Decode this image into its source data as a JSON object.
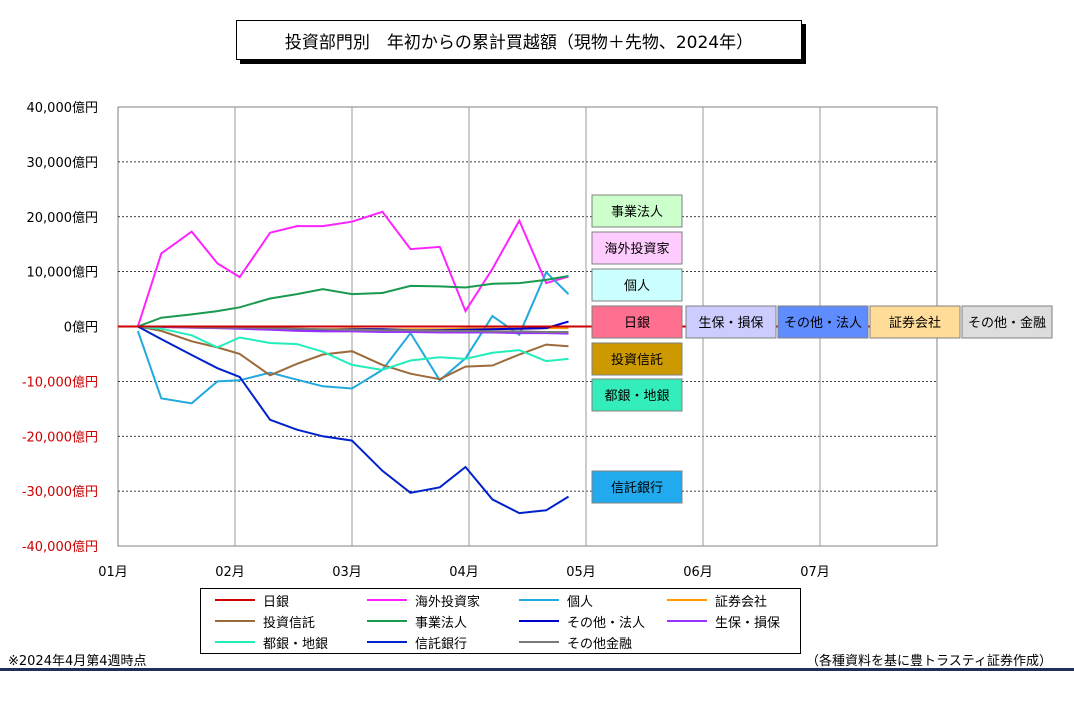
{
  "chart_data": {
    "type": "line",
    "title": "投資部門別　年初からの累計買越額（現物＋先物、2024年）",
    "x_ticks": [
      "01月",
      "02月",
      "03月",
      "04月",
      "05月",
      "06月",
      "07月"
    ],
    "y_ticks": [
      {
        "value": 40000,
        "label": "40,000億円"
      },
      {
        "value": 30000,
        "label": "30,000億円"
      },
      {
        "value": 20000,
        "label": "20,000億円"
      },
      {
        "value": 10000,
        "label": "10,000億円"
      },
      {
        "value": 0,
        "label": "0億円"
      },
      {
        "value": -10000,
        "label": "-10,000億円"
      },
      {
        "value": -20000,
        "label": "-20,000億円"
      },
      {
        "value": -30000,
        "label": "-30,000億円"
      },
      {
        "value": -40000,
        "label": "-40,000億円"
      }
    ],
    "ylim": [
      -40000,
      40000
    ],
    "x_range_months": [
      0,
      6
    ],
    "grid": true,
    "x": [
      0.17,
      0.37,
      0.63,
      0.85,
      1.04,
      1.3,
      1.53,
      1.75,
      2.0,
      2.26,
      2.5,
      2.75,
      2.97,
      3.2,
      3.43,
      3.66,
      3.85
    ],
    "series": [
      {
        "name": "日銀",
        "color": "#cc0000",
        "values": [
          0,
          0,
          0,
          0,
          0,
          0,
          0,
          0,
          0,
          0,
          0,
          0,
          0,
          0,
          0,
          0,
          0
        ]
      },
      {
        "name": "海外投資家",
        "color": "#ff22ff",
        "values": [
          0,
          13300,
          17300,
          11500,
          9000,
          17100,
          18300,
          18300,
          19100,
          20900,
          14100,
          14500,
          2800,
          10500,
          19300,
          7900,
          9100
        ]
      },
      {
        "name": "個人",
        "color": "#22aadd",
        "values": [
          -800,
          -13100,
          -14000,
          -10000,
          -9800,
          -8400,
          -9700,
          -10900,
          -11300,
          -7900,
          -1200,
          -9800,
          -5800,
          1900,
          -1500,
          9900,
          5900
        ]
      },
      {
        "name": "証券会社",
        "color": "#ff9900",
        "values": [
          0,
          -100,
          -200,
          -300,
          -300,
          -400,
          -400,
          -500,
          -400,
          -500,
          -500,
          -500,
          -400,
          -400,
          -400,
          -300,
          -300
        ]
      },
      {
        "name": "投資信託",
        "color": "#9c6b3c",
        "values": [
          0,
          -800,
          -2700,
          -3800,
          -5000,
          -8900,
          -6800,
          -5100,
          -4500,
          -7000,
          -8600,
          -9600,
          -7300,
          -7100,
          -5100,
          -3300,
          -3600
        ]
      },
      {
        "name": "事業法人",
        "color": "#1a9a50",
        "values": [
          0,
          1600,
          2200,
          2800,
          3500,
          5100,
          5900,
          6800,
          5900,
          6100,
          7400,
          7300,
          7100,
          7800,
          7900,
          8500,
          9200
        ]
      },
      {
        "name": "その他・法人",
        "color": "#0000cc",
        "values": [
          0,
          -100,
          -100,
          -100,
          -200,
          -400,
          -500,
          -600,
          -500,
          -500,
          -700,
          -700,
          -600,
          -500,
          -400,
          -300,
          900
        ]
      },
      {
        "name": "生保・損保",
        "color": "#9933ff",
        "values": [
          0,
          -100,
          -200,
          -300,
          -400,
          -600,
          -800,
          -900,
          -900,
          -1000,
          -1000,
          -1100,
          -1100,
          -1100,
          -1200,
          -1200,
          -1300
        ]
      },
      {
        "name": "都銀・地銀",
        "color": "#22eebb",
        "values": [
          0,
          -400,
          -1600,
          -3800,
          -2000,
          -3000,
          -3200,
          -4600,
          -7000,
          -7900,
          -6200,
          -5600,
          -5900,
          -4800,
          -4300,
          -6300,
          -5900
        ]
      },
      {
        "name": "信託銀行",
        "color": "#0022cc",
        "values": [
          0,
          -2300,
          -5200,
          -7600,
          -9200,
          -17000,
          -18800,
          -20000,
          -20800,
          -26300,
          -30300,
          -29300,
          -25600,
          -31500,
          -34000,
          -33500,
          -31000
        ]
      },
      {
        "name": "その他金融",
        "color": "#7a7a7a",
        "values": [
          0,
          0,
          -100,
          -200,
          -200,
          -300,
          -400,
          -500,
          -600,
          -700,
          -700,
          -800,
          -800,
          -900,
          -900,
          -1000,
          -1000
        ]
      }
    ]
  },
  "labels": [
    {
      "text": "事業法人",
      "bg": "#ccffcc"
    },
    {
      "text": "海外投資家",
      "bg": "#ffccff"
    },
    {
      "text": "個人",
      "bg": "#ccffff"
    },
    {
      "text": "日銀",
      "bg": "#ff6f8f"
    },
    {
      "text": "生保・損保",
      "bg": "#ccccff"
    },
    {
      "text": "その他・法人",
      "bg": "#5f8cff"
    },
    {
      "text": "証券会社",
      "bg": "#ffdd99"
    },
    {
      "text": "その他・金融",
      "bg": "#dddddd"
    },
    {
      "text": "投資信託",
      "bg": "#cc9900"
    },
    {
      "text": "都銀・地銀",
      "bg": "#33eebb"
    },
    {
      "text": "信託銀行",
      "bg": "#22aaee"
    }
  ],
  "legend": [
    {
      "name": "日銀",
      "color": "#cc0000"
    },
    {
      "name": "海外投資家",
      "color": "#ff22ff"
    },
    {
      "name": "個人",
      "color": "#22aadd"
    },
    {
      "name": "証券会社",
      "color": "#ff9900"
    },
    {
      "name": "投資信託",
      "color": "#9c6b3c"
    },
    {
      "name": "事業法人",
      "color": "#1a9a50"
    },
    {
      "name": "その他・法人",
      "color": "#0000cc"
    },
    {
      "name": "生保・損保",
      "color": "#9933ff"
    },
    {
      "name": "都銀・地銀",
      "color": "#22eebb"
    },
    {
      "name": "信託銀行",
      "color": "#0022cc"
    },
    {
      "name": "その他金融",
      "color": "#7a7a7a"
    }
  ],
  "note_left": "※2024年4月第4週時点",
  "note_right": "（各種資料を基に豊トラスティ証券作成）"
}
